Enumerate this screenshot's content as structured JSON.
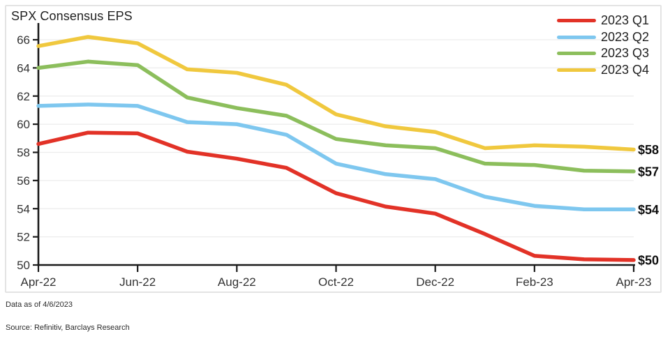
{
  "title": "SPX Consensus EPS",
  "footnotes": {
    "data_as_of": "Data as of 4/6/2023",
    "source": "Source: Refinitiv, Barclays Research"
  },
  "chart_data": {
    "type": "line",
    "title": "SPX Consensus EPS",
    "categories": [
      "Apr-22",
      "May-22",
      "Jun-22",
      "Jul-22",
      "Aug-22",
      "Sep-22",
      "Oct-22",
      "Nov-22",
      "Dec-22",
      "Jan-23",
      "Feb-23",
      "Mar-23",
      "Apr-23"
    ],
    "x_tick_indices": [
      0,
      2,
      4,
      6,
      8,
      10,
      12
    ],
    "x_tick_labels": [
      "Apr-22",
      "Jun-22",
      "Aug-22",
      "Oct-22",
      "Dec-22",
      "Feb-23",
      "Apr-23"
    ],
    "y_ticks": [
      50,
      52,
      54,
      56,
      58,
      60,
      62,
      64,
      66
    ],
    "ylim": [
      50,
      66
    ],
    "grid": "horizontal gridlines every 2 units, light gray",
    "legend_position": "top-right",
    "series": [
      {
        "name": "2023 Q1",
        "color": "#e23227",
        "end_label": "$50",
        "values": [
          58.6,
          59.4,
          59.35,
          58.05,
          57.55,
          56.9,
          55.1,
          54.15,
          53.65,
          52.2,
          50.65,
          50.4,
          50.35
        ]
      },
      {
        "name": "2023 Q2",
        "color": "#7ec7ef",
        "end_label": "$54",
        "values": [
          61.3,
          61.4,
          61.3,
          60.15,
          60.0,
          59.25,
          57.2,
          56.45,
          56.1,
          54.85,
          54.2,
          53.95,
          53.95
        ]
      },
      {
        "name": "2023 Q3",
        "color": "#8cbe5c",
        "end_label": "$57",
        "values": [
          64.0,
          64.45,
          64.2,
          61.9,
          61.15,
          60.6,
          58.95,
          58.5,
          58.3,
          57.2,
          57.1,
          56.7,
          56.65
        ]
      },
      {
        "name": "2023 Q4",
        "color": "#f0c83e",
        "end_label": "$58",
        "values": [
          65.55,
          66.2,
          65.75,
          63.9,
          63.65,
          62.8,
          60.7,
          59.85,
          59.45,
          58.3,
          58.5,
          58.4,
          58.2
        ]
      }
    ]
  }
}
